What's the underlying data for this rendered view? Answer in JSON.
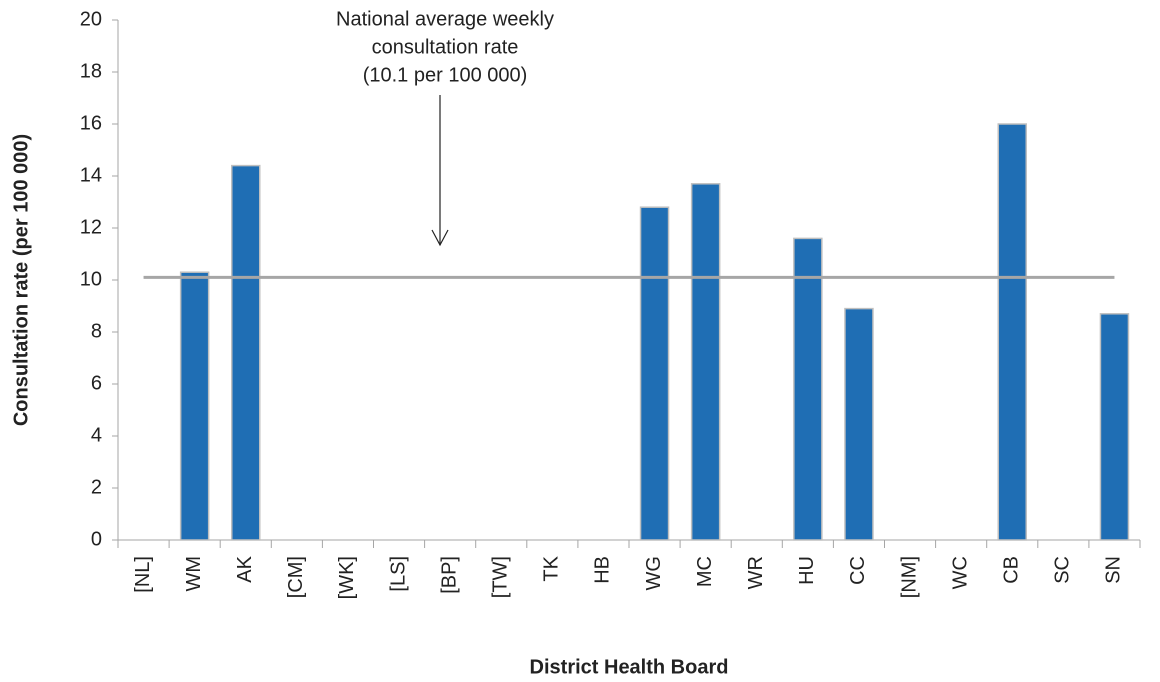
{
  "chart_data": {
    "type": "bar",
    "x_label": "District Health Board",
    "y_label": "Consultation rate (per 100 000)",
    "categories": [
      "[NL]",
      "WM",
      "AK",
      "[CM]",
      "[WK]",
      "[LS]",
      "[BP]",
      "[TW]",
      "TK",
      "HB",
      "WG",
      "MC",
      "WR",
      "HU",
      "CC",
      "[NM]",
      "WC",
      "CB",
      "SC",
      "SN"
    ],
    "values": [
      0,
      10.3,
      14.4,
      0,
      0,
      0,
      0,
      0,
      0,
      0,
      12.8,
      13.7,
      0,
      11.6,
      8.9,
      0,
      0,
      16.0,
      0,
      8.7
    ],
    "color": "#1f6eb4",
    "ylim": [
      0,
      20
    ],
    "yticks": [
      0,
      2,
      4,
      6,
      8,
      10,
      12,
      14,
      16,
      18,
      20
    ],
    "reference_line": {
      "value": 10.1,
      "color": "#a6a6a6"
    },
    "annotation": [
      "National average weekly",
      "consultation rate",
      "(10.1 per 100 000)"
    ]
  }
}
